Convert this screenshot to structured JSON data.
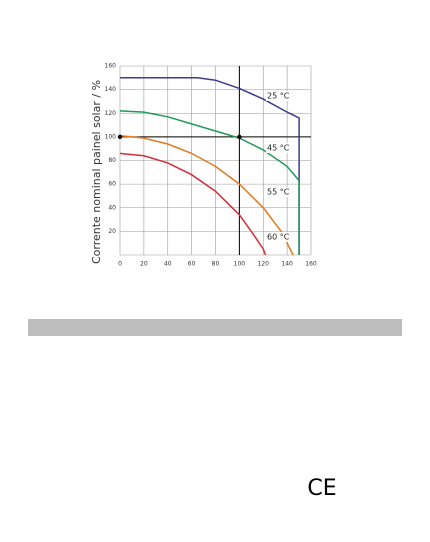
{
  "chart_data": {
    "type": "line",
    "ylabel": "Corrente nominal painel solar / %",
    "xlim": [
      0,
      160
    ],
    "ylim": [
      0,
      160
    ],
    "xticks": [
      0,
      20,
      40,
      60,
      80,
      100,
      120,
      140,
      160
    ],
    "yticks": [
      0,
      20,
      40,
      60,
      80,
      100,
      120,
      140,
      160
    ],
    "grid": true,
    "reference_x": 100,
    "reference_y": 100,
    "markers": [
      {
        "x": 0,
        "y": 100
      },
      {
        "x": 100,
        "y": 100
      }
    ],
    "series": [
      {
        "name": "25 °C",
        "color": "#3c3b8c",
        "x": [
          0,
          65,
          80,
          100,
          120,
          140,
          150,
          150
        ],
        "values": [
          150,
          150,
          148,
          141,
          132,
          121,
          116,
          0
        ]
      },
      {
        "name": "45 °C",
        "color": "#1f9a5a",
        "x": [
          0,
          20,
          40,
          60,
          80,
          100,
          120,
          140,
          150,
          150
        ],
        "values": [
          122,
          121,
          117,
          111,
          105,
          99,
          89,
          75,
          63,
          0
        ]
      },
      {
        "name": "55 °C",
        "color": "#e07b20",
        "x": [
          0,
          20,
          40,
          60,
          80,
          100,
          120,
          135,
          145
        ],
        "values": [
          101,
          99,
          94,
          86,
          75,
          60,
          40,
          20,
          0
        ]
      },
      {
        "name": "60 °C",
        "color": "#d32f3a",
        "x": [
          0,
          20,
          40,
          60,
          80,
          100,
          110,
          120,
          122
        ],
        "values": [
          86,
          84,
          78,
          68,
          54,
          34,
          20,
          5,
          0
        ]
      }
    ]
  },
  "ce_mark": "CE"
}
